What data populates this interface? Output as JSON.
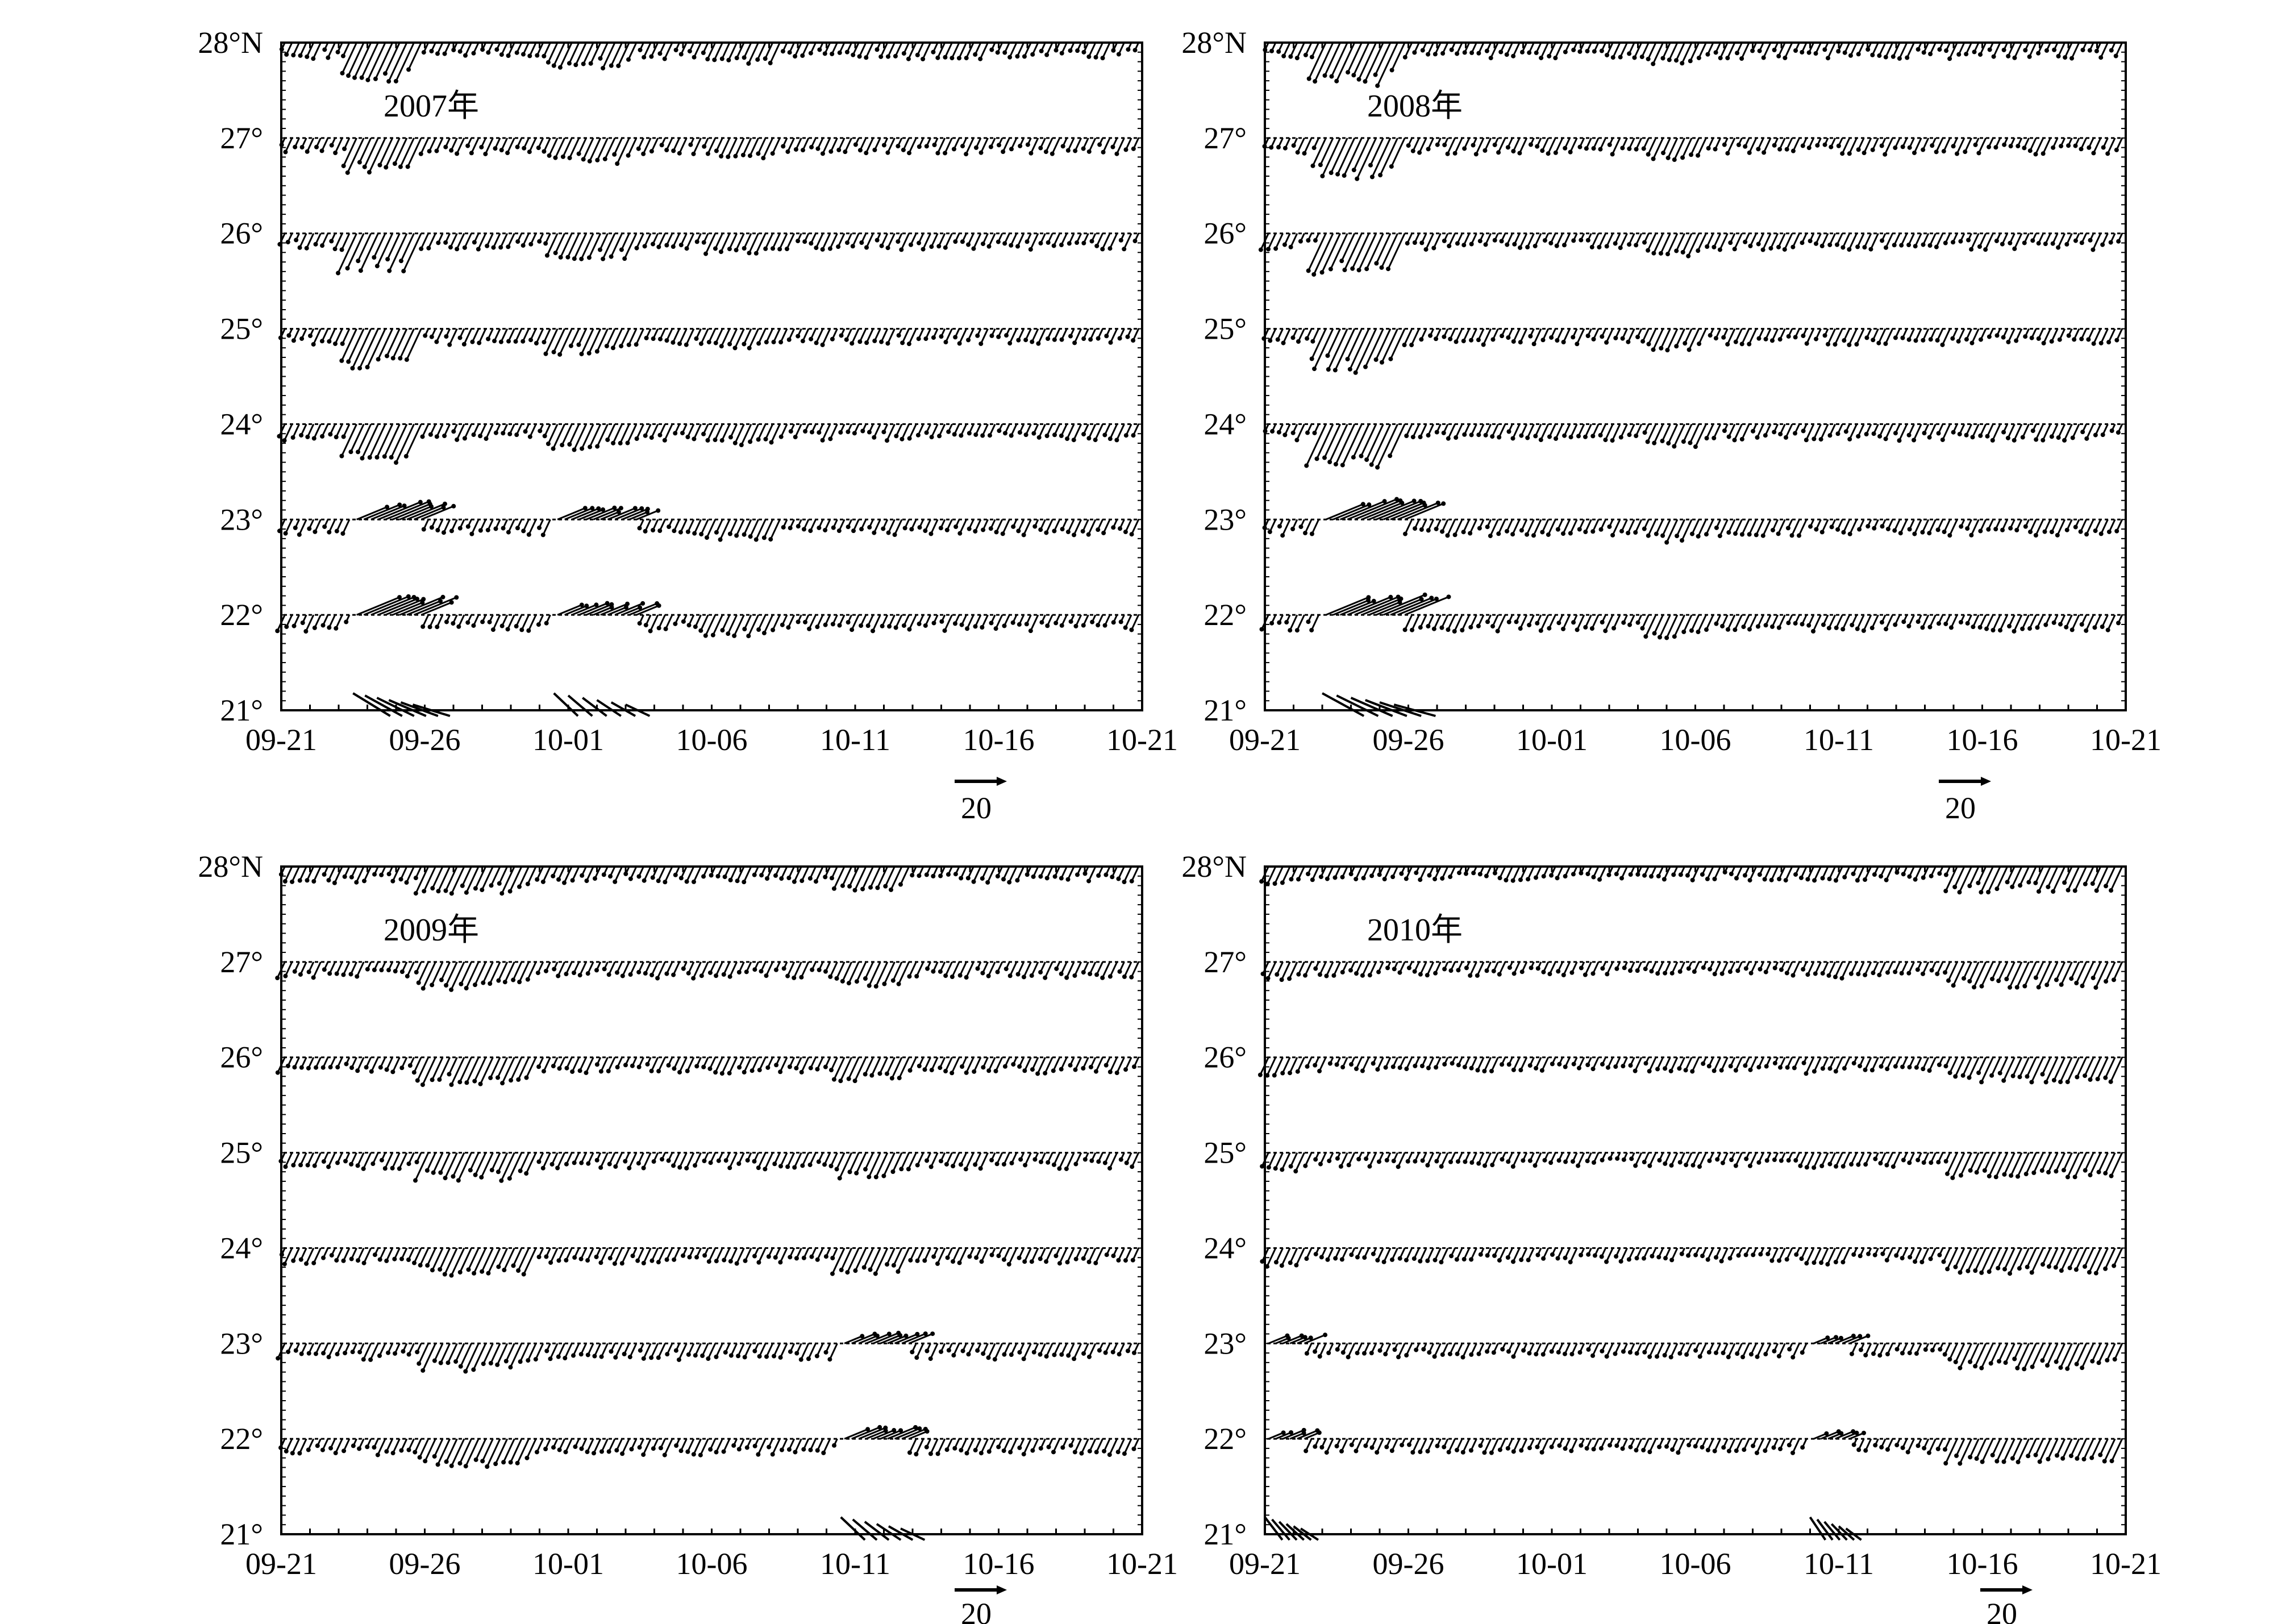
{
  "chart_data": [
    {
      "type": "vector-timeseries",
      "panel_title": "2007年",
      "x_tick_labels": [
        "09-21",
        "09-26",
        "10-01",
        "10-06",
        "10-11",
        "10-16",
        "10-21"
      ],
      "x_range": [
        "09-21",
        "10-21"
      ],
      "y_tick_labels": [
        "28°N",
        "27°",
        "26°",
        "25°",
        "24°",
        "23°",
        "22°",
        "21°"
      ],
      "y_levels": [
        28,
        27,
        26,
        25,
        24,
        23,
        22,
        21
      ],
      "scale_vector_label": "20",
      "scale_vector_value": 20,
      "wind_events": [
        {
          "start_day": 2.5,
          "end_day": 5.0,
          "strength": 0.85,
          "southern_latitudes_reversed": true
        },
        {
          "start_day": 9.5,
          "end_day": 12.5,
          "strength": 0.55,
          "southern_latitudes_reversed": true
        },
        {
          "start_day": 15.0,
          "end_day": 17.5,
          "strength": 0.45,
          "southern_latitudes_reversed": false
        }
      ],
      "background_strength": 0.35
    },
    {
      "type": "vector-timeseries",
      "panel_title": "2008年",
      "x_tick_labels": [
        "09-21",
        "09-26",
        "10-01",
        "10-06",
        "10-11",
        "10-16",
        "10-21"
      ],
      "x_range": [
        "09-21",
        "10-21"
      ],
      "y_tick_labels": [
        "28°N",
        "27°",
        "26°",
        "25°",
        "24°",
        "23°",
        "22°",
        "21°"
      ],
      "y_levels": [
        28,
        27,
        26,
        25,
        24,
        23,
        22,
        21
      ],
      "scale_vector_label": "20",
      "scale_vector_value": 20,
      "wind_events": [
        {
          "start_day": 2.0,
          "end_day": 5.0,
          "strength": 0.95,
          "southern_latitudes_reversed": true
        },
        {
          "start_day": 13.5,
          "end_day": 15.5,
          "strength": 0.5,
          "southern_latitudes_reversed": false
        }
      ],
      "background_strength": 0.35
    },
    {
      "type": "vector-timeseries",
      "panel_title": "2009年",
      "x_tick_labels": [
        "09-21",
        "09-26",
        "10-01",
        "10-06",
        "10-11",
        "10-16",
        "10-21"
      ],
      "x_range": [
        "09-21",
        "10-21"
      ],
      "y_tick_labels": [
        "28°N",
        "27°",
        "26°",
        "25°",
        "24°",
        "23°",
        "22°",
        "21°"
      ],
      "y_levels": [
        28,
        27,
        26,
        25,
        24,
        23,
        22,
        21
      ],
      "scale_vector_label": "20",
      "scale_vector_value": 20,
      "wind_events": [
        {
          "start_day": 5.0,
          "end_day": 9.0,
          "strength": 0.6,
          "southern_latitudes_reversed": false
        },
        {
          "start_day": 19.5,
          "end_day": 22.0,
          "strength": 0.55,
          "southern_latitudes_reversed": true
        }
      ],
      "background_strength": 0.35
    },
    {
      "type": "vector-timeseries",
      "panel_title": "2010年",
      "x_tick_labels": [
        "09-21",
        "09-26",
        "10-01",
        "10-06",
        "10-11",
        "10-16",
        "10-21"
      ],
      "x_range": [
        "09-21",
        "10-21"
      ],
      "y_tick_labels": [
        "28°N",
        "27°",
        "26°",
        "25°",
        "24°",
        "23°",
        "22°",
        "21°"
      ],
      "y_levels": [
        28,
        27,
        26,
        25,
        24,
        23,
        22,
        21
      ],
      "scale_vector_label": "20",
      "scale_vector_value": 20,
      "wind_events": [
        {
          "start_day": 0.0,
          "end_day": 1.5,
          "strength": 0.4,
          "southern_latitudes_reversed": true
        },
        {
          "start_day": 19.0,
          "end_day": 20.5,
          "strength": 0.35,
          "southern_latitudes_reversed": true
        },
        {
          "start_day": 24.0,
          "end_day": 30.0,
          "strength": 0.55,
          "southern_latitudes_reversed": false
        }
      ],
      "background_strength": 0.3
    }
  ]
}
